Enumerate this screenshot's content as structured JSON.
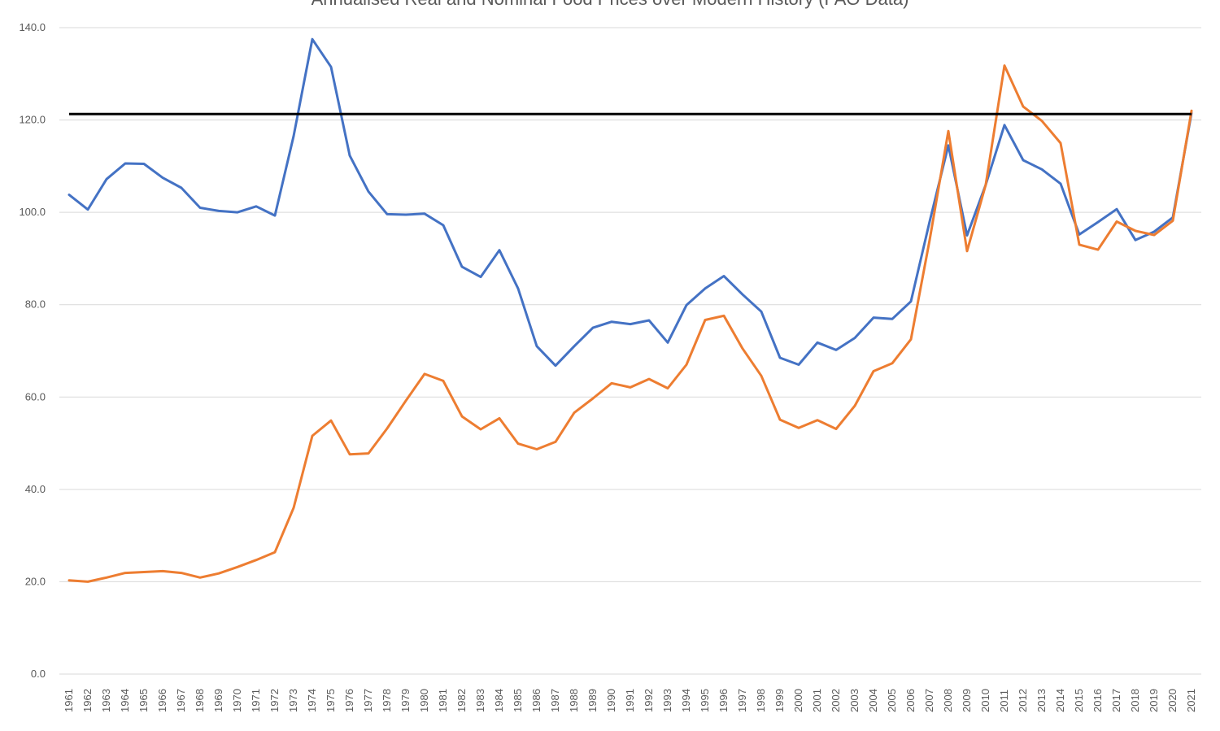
{
  "chart_data": {
    "type": "line",
    "title": "Annualised Real and Nominal Food Prices over Modern History (FAO Data)",
    "xlabel": "",
    "ylabel": "",
    "ylim": [
      0,
      140
    ],
    "y_ticks": [
      "0.0",
      "20.0",
      "40.0",
      "60.0",
      "80.0",
      "100.0",
      "120.0",
      "140.0"
    ],
    "grid": true,
    "legend": "none",
    "categories": [
      "1961",
      "1962",
      "1963",
      "1964",
      "1965",
      "1966",
      "1967",
      "1968",
      "1969",
      "1970",
      "1971",
      "1972",
      "1973",
      "1974",
      "1975",
      "1976",
      "1977",
      "1978",
      "1979",
      "1980",
      "1981",
      "1982",
      "1983",
      "1984",
      "1985",
      "1986",
      "1987",
      "1988",
      "1989",
      "1990",
      "1991",
      "1992",
      "1993",
      "1994",
      "1995",
      "1996",
      "1997",
      "1998",
      "1999",
      "2000",
      "2001",
      "2002",
      "2003",
      "2004",
      "2005",
      "2006",
      "2007",
      "2008",
      "2009",
      "2010",
      "2011",
      "2012",
      "2013",
      "2014",
      "2015",
      "2016",
      "2017",
      "2018",
      "2019",
      "2020",
      "2021"
    ],
    "series": [
      {
        "color": "#4472c4",
        "values": [
          103.8,
          100.6,
          107.2,
          110.6,
          110.5,
          107.5,
          105.3,
          101.0,
          100.3,
          100.0,
          101.3,
          99.3,
          116.5,
          137.5,
          131.5,
          112.3,
          104.5,
          99.6,
          99.5,
          99.7,
          97.2,
          88.2,
          86.0,
          91.8,
          83.5,
          71.0,
          66.8,
          71.0,
          75.0,
          76.3,
          75.8,
          76.6,
          71.8,
          79.9,
          83.5,
          86.2,
          82.2,
          78.5,
          68.5,
          67.0,
          71.8,
          70.2,
          72.8,
          77.2,
          76.9,
          80.7,
          98.0,
          114.5,
          95.0,
          106.0,
          118.9,
          111.3,
          109.3,
          106.2,
          95.2,
          97.9,
          100.7,
          94.0,
          95.8,
          98.9,
          121.5
        ]
      },
      {
        "color": "#ed7d31",
        "values": [
          20.3,
          20.0,
          20.9,
          21.9,
          22.1,
          22.3,
          21.9,
          20.9,
          21.8,
          23.2,
          24.7,
          26.4,
          36.0,
          51.6,
          54.9,
          47.6,
          47.8,
          53.2,
          59.2,
          65.0,
          63.5,
          55.8,
          53.0,
          55.4,
          49.9,
          48.7,
          50.3,
          56.6,
          59.7,
          63.0,
          62.1,
          63.9,
          61.9,
          67.0,
          76.7,
          77.6,
          70.5,
          64.6,
          55.1,
          53.3,
          55.0,
          53.1,
          58.1,
          65.6,
          67.3,
          72.5,
          94.0,
          117.6,
          91.6,
          106.0,
          131.8,
          122.9,
          119.8,
          115.0,
          93.0,
          91.9,
          98.0,
          96.0,
          95.1,
          98.2,
          122.0
        ]
      }
    ],
    "reference_line": {
      "y": 121.3,
      "color": "#000000"
    }
  }
}
